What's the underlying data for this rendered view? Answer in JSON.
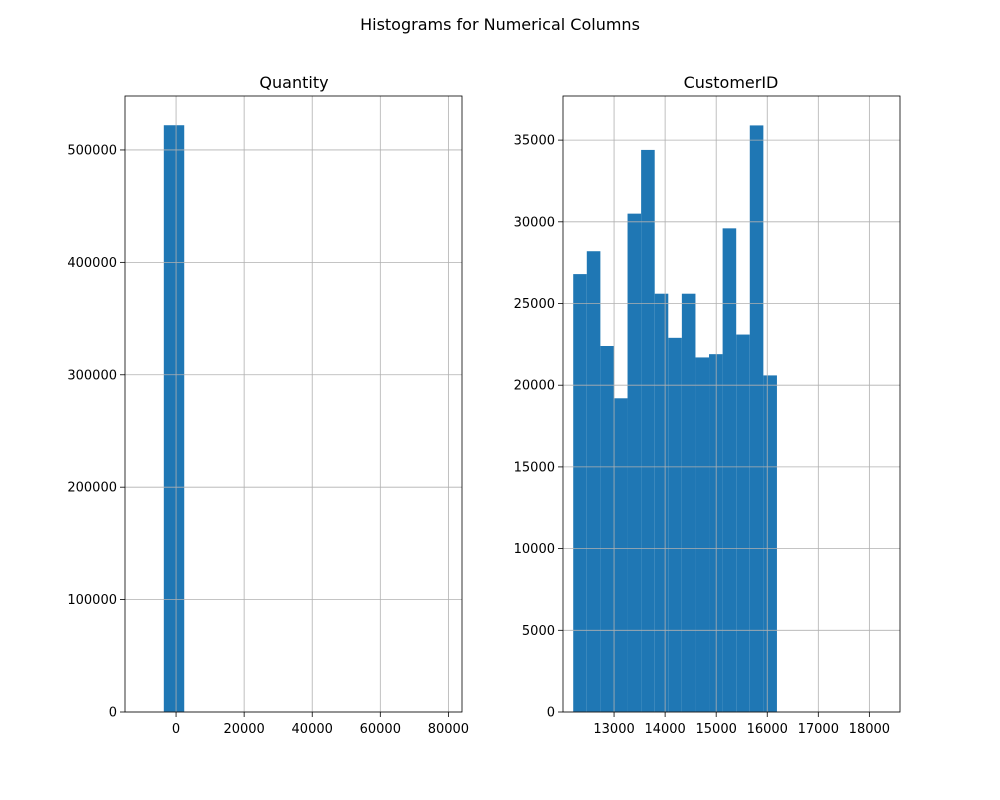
{
  "figure": {
    "suptitle": "Histograms for Numerical Columns"
  },
  "colors": {
    "bar": "#1f77b4",
    "grid": "#b0b0b0",
    "spine": "#000000"
  },
  "chart_data": [
    {
      "type": "bar",
      "title": "Quantity",
      "xlabel": "",
      "ylabel": "",
      "grid": true,
      "xlim": [
        -15000,
        84000
      ],
      "ylim": [
        0,
        548000
      ],
      "xticks": [
        0,
        20000,
        40000,
        60000,
        80000
      ],
      "xtick_labels": [
        "0",
        "20000",
        "40000",
        "60000",
        "80000"
      ],
      "yticks": [
        0,
        100000,
        200000,
        300000,
        400000,
        500000
      ],
      "ytick_labels": [
        "0",
        "100000",
        "200000",
        "300000",
        "400000",
        "500000"
      ],
      "bins": [
        {
          "x0": -3600,
          "x1": 2400,
          "value": 522000
        }
      ]
    },
    {
      "type": "bar",
      "title": "CustomerID",
      "xlabel": "",
      "ylabel": "",
      "grid": true,
      "xlim": [
        12000,
        18600
      ],
      "ylim": [
        0,
        37700
      ],
      "xticks": [
        13000,
        14000,
        15000,
        16000,
        17000,
        18000
      ],
      "xtick_labels": [
        "13000",
        "14000",
        "15000",
        "16000",
        "17000",
        "18000"
      ],
      "yticks": [
        0,
        5000,
        10000,
        15000,
        20000,
        25000,
        30000,
        35000
      ],
      "ytick_labels": [
        "0",
        "5000",
        "10000",
        "15000",
        "20000",
        "25000",
        "30000",
        "35000"
      ],
      "bins": [
        {
          "x0": 12200,
          "x1": 12466,
          "value": 26800
        },
        {
          "x0": 12466,
          "x1": 12732,
          "value": 28200
        },
        {
          "x0": 12732,
          "x1": 12998,
          "value": 22400
        },
        {
          "x0": 12998,
          "x1": 13264,
          "value": 19200
        },
        {
          "x0": 13264,
          "x1": 13530,
          "value": 30500
        },
        {
          "x0": 13530,
          "x1": 13796,
          "value": 34400
        },
        {
          "x0": 13796,
          "x1": 14062,
          "value": 25600
        },
        {
          "x0": 14062,
          "x1": 14328,
          "value": 22900
        },
        {
          "x0": 14328,
          "x1": 14594,
          "value": 25600
        },
        {
          "x0": 14594,
          "x1": 14860,
          "value": 21700
        },
        {
          "x0": 14860,
          "x1": 15126,
          "value": 21900
        },
        {
          "x0": 15126,
          "x1": 15392,
          "value": 29600
        },
        {
          "x0": 15392,
          "x1": 15658,
          "value": 23100
        },
        {
          "x0": 15658,
          "x1": 15924,
          "value": 35900
        },
        {
          "x0": 15924,
          "x1": 16190,
          "value": 20600
        }
      ]
    }
  ]
}
